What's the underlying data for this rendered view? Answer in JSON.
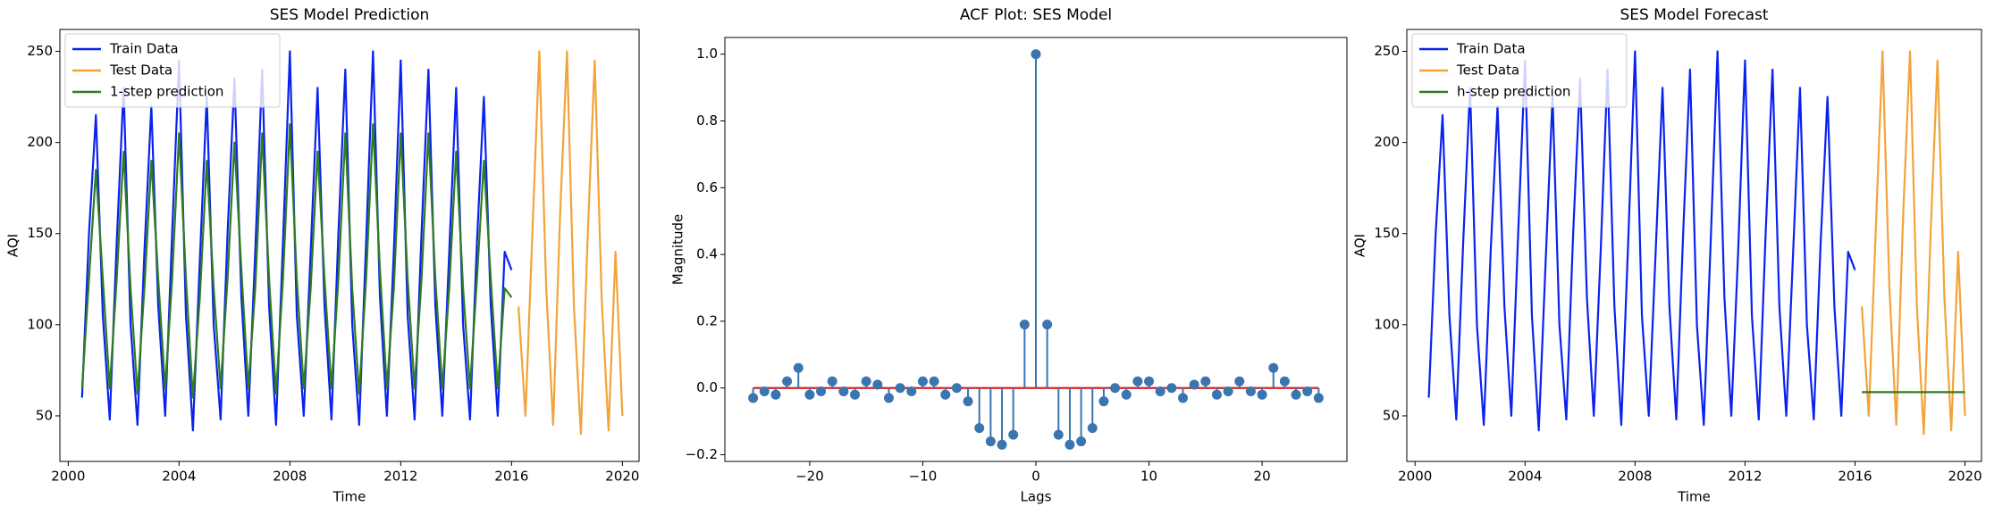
{
  "chart_data": [
    {
      "type": "line",
      "title": "SES Model Prediction",
      "xlabel": "Time",
      "ylabel": "AQI",
      "xlim": [
        1999.7,
        2020.6
      ],
      "xticks": [
        2000,
        2004,
        2008,
        2012,
        2016,
        2020
      ],
      "ylim": [
        25,
        262
      ],
      "yticks": [
        50,
        100,
        150,
        200,
        250
      ],
      "legend": "upper left",
      "series": [
        {
          "name": "Train Data",
          "color": "#0a22f0",
          "x": [
            2000.5,
            2000.75,
            2001,
            2001.25,
            2001.5,
            2001.75,
            2002,
            2002.25,
            2002.5,
            2002.75,
            2003,
            2003.25,
            2003.5,
            2003.75,
            2004,
            2004.25,
            2004.5,
            2004.75,
            2005,
            2005.25,
            2005.5,
            2005.75,
            2006,
            2006.25,
            2006.5,
            2006.75,
            2007,
            2007.25,
            2007.5,
            2007.75,
            2008,
            2008.25,
            2008.5,
            2008.75,
            2009,
            2009.25,
            2009.5,
            2009.75,
            2010,
            2010.25,
            2010.5,
            2010.75,
            2011,
            2011.25,
            2011.5,
            2011.75,
            2012,
            2012.25,
            2012.5,
            2012.75,
            2013,
            2013.25,
            2013.5,
            2013.75,
            2014,
            2014.25,
            2014.5,
            2014.75,
            2015,
            2015.25,
            2015.5,
            2015.75,
            2016
          ],
          "values": [
            60,
            150,
            215,
            105,
            48,
            145,
            230,
            100,
            45,
            140,
            220,
            110,
            50,
            150,
            245,
            105,
            42,
            135,
            225,
            100,
            48,
            150,
            235,
            115,
            50,
            140,
            240,
            110,
            45,
            145,
            250,
            105,
            50,
            140,
            230,
            110,
            48,
            150,
            240,
            100,
            45,
            145,
            250,
            115,
            50,
            140,
            245,
            105,
            48,
            150,
            240,
            110,
            50,
            140,
            230,
            100,
            48,
            145,
            225,
            110,
            50,
            140,
            130
          ]
        },
        {
          "name": "Test Data",
          "color": "#f2a33a",
          "x": [
            2016.25,
            2016.5,
            2016.75,
            2017,
            2017.25,
            2017.5,
            2017.75,
            2018,
            2018.25,
            2018.5,
            2018.75,
            2019,
            2019.25,
            2019.5,
            2019.75,
            2020
          ],
          "values": [
            110,
            50,
            150,
            250,
            120,
            45,
            160,
            250,
            110,
            40,
            150,
            245,
            115,
            42,
            140,
            50
          ]
        },
        {
          "name": "1-step prediction",
          "color": "#2f7d1f",
          "x": [
            2000.5,
            2000.75,
            2001,
            2001.25,
            2001.5,
            2001.75,
            2002,
            2002.25,
            2002.5,
            2002.75,
            2003,
            2003.25,
            2003.5,
            2003.75,
            2004,
            2004.25,
            2004.5,
            2004.75,
            2005,
            2005.25,
            2005.5,
            2005.75,
            2006,
            2006.25,
            2006.5,
            2006.75,
            2007,
            2007.25,
            2007.5,
            2007.75,
            2008,
            2008.25,
            2008.5,
            2008.75,
            2009,
            2009.25,
            2009.5,
            2009.75,
            2010,
            2010.25,
            2010.5,
            2010.75,
            2011,
            2011.25,
            2011.5,
            2011.75,
            2012,
            2012.25,
            2012.5,
            2012.75,
            2013,
            2013.25,
            2013.5,
            2013.75,
            2014,
            2014.25,
            2014.5,
            2014.75,
            2015,
            2015.25,
            2015.5,
            2015.75,
            2016
          ],
          "values": [
            65,
            125,
            185,
            125,
            65,
            125,
            195,
            120,
            62,
            120,
            190,
            125,
            65,
            125,
            205,
            125,
            60,
            115,
            190,
            120,
            65,
            125,
            200,
            130,
            65,
            120,
            205,
            125,
            62,
            125,
            210,
            125,
            65,
            120,
            195,
            125,
            65,
            125,
            205,
            120,
            62,
            125,
            210,
            130,
            65,
            120,
            205,
            125,
            65,
            125,
            205,
            125,
            65,
            120,
            195,
            120,
            65,
            125,
            190,
            125,
            65,
            120,
            115
          ]
        }
      ]
    },
    {
      "type": "stem",
      "title": "ACF Plot: SES Model",
      "xlabel": "Lags",
      "ylabel": "Magnitude",
      "xlim": [
        -27.5,
        27.5
      ],
      "xticks": [
        {
          "value": -20,
          "label": "−20"
        },
        {
          "value": -10,
          "label": "−10"
        },
        0,
        10,
        20
      ],
      "ylim": [
        -0.22,
        1.05
      ],
      "yticks": [
        {
          "value": -0.2,
          "label": "−0.2"
        },
        {
          "value": 0,
          "label": "0.0"
        },
        0.2,
        0.4,
        0.6,
        0.8,
        {
          "value": 1,
          "label": "1.0"
        }
      ],
      "color": "#3a75b0",
      "baseline_color": "#d62728",
      "x": [
        -25,
        -24,
        -23,
        -22,
        -21,
        -20,
        -19,
        -18,
        -17,
        -16,
        -15,
        -14,
        -13,
        -12,
        -11,
        -10,
        -9,
        -8,
        -7,
        -6,
        -5,
        -4,
        -3,
        -2,
        -1,
        0,
        1,
        2,
        3,
        4,
        5,
        6,
        7,
        8,
        9,
        10,
        11,
        12,
        13,
        14,
        15,
        16,
        17,
        18,
        19,
        20,
        21,
        22,
        23,
        24,
        25
      ],
      "values": [
        -0.03,
        -0.01,
        -0.02,
        0.02,
        0.06,
        -0.02,
        -0.01,
        0.02,
        -0.01,
        -0.02,
        0.02,
        0.01,
        -0.03,
        0,
        -0.01,
        0.02,
        0.02,
        -0.02,
        0,
        -0.04,
        -0.12,
        -0.16,
        -0.17,
        -0.14,
        0.19,
        1,
        0.19,
        -0.14,
        -0.17,
        -0.16,
        -0.12,
        -0.04,
        0,
        -0.02,
        0.02,
        0.02,
        -0.01,
        0,
        -0.03,
        0.01,
        0.02,
        -0.02,
        -0.01,
        0.02,
        -0.01,
        -0.02,
        0.06,
        0.02,
        -0.02,
        -0.01,
        -0.03
      ]
    },
    {
      "type": "line",
      "title": "SES Model Forecast",
      "xlabel": "Time",
      "ylabel": "AQI",
      "xlim": [
        1999.7,
        2020.6
      ],
      "xticks": [
        2000,
        2004,
        2008,
        2012,
        2016,
        2020
      ],
      "ylim": [
        25,
        262
      ],
      "yticks": [
        50,
        100,
        150,
        200,
        250
      ],
      "legend": "upper left",
      "series": [
        {
          "name": "Train Data",
          "color": "#0a22f0",
          "x": [
            2000.5,
            2000.75,
            2001,
            2001.25,
            2001.5,
            2001.75,
            2002,
            2002.25,
            2002.5,
            2002.75,
            2003,
            2003.25,
            2003.5,
            2003.75,
            2004,
            2004.25,
            2004.5,
            2004.75,
            2005,
            2005.25,
            2005.5,
            2005.75,
            2006,
            2006.25,
            2006.5,
            2006.75,
            2007,
            2007.25,
            2007.5,
            2007.75,
            2008,
            2008.25,
            2008.5,
            2008.75,
            2009,
            2009.25,
            2009.5,
            2009.75,
            2010,
            2010.25,
            2010.5,
            2010.75,
            2011,
            2011.25,
            2011.5,
            2011.75,
            2012,
            2012.25,
            2012.5,
            2012.75,
            2013,
            2013.25,
            2013.5,
            2013.75,
            2014,
            2014.25,
            2014.5,
            2014.75,
            2015,
            2015.25,
            2015.5,
            2015.75,
            2016
          ],
          "values": [
            60,
            150,
            215,
            105,
            48,
            145,
            230,
            100,
            45,
            140,
            220,
            110,
            50,
            150,
            245,
            105,
            42,
            135,
            225,
            100,
            48,
            150,
            235,
            115,
            50,
            140,
            240,
            110,
            45,
            145,
            250,
            105,
            50,
            140,
            230,
            110,
            48,
            150,
            240,
            100,
            45,
            145,
            250,
            115,
            50,
            140,
            245,
            105,
            48,
            150,
            240,
            110,
            50,
            140,
            230,
            100,
            48,
            145,
            225,
            110,
            50,
            140,
            130
          ]
        },
        {
          "name": "Test Data",
          "color": "#f2a33a",
          "x": [
            2016.25,
            2016.5,
            2016.75,
            2017,
            2017.25,
            2017.5,
            2017.75,
            2018,
            2018.25,
            2018.5,
            2018.75,
            2019,
            2019.25,
            2019.5,
            2019.75,
            2020
          ],
          "values": [
            110,
            50,
            150,
            250,
            120,
            45,
            160,
            250,
            110,
            40,
            150,
            245,
            115,
            42,
            140,
            50
          ]
        },
        {
          "name": "h-step prediction",
          "color": "#2f7d1f",
          "x": [
            2016.25,
            2020
          ],
          "values": [
            63,
            63
          ]
        }
      ]
    }
  ]
}
